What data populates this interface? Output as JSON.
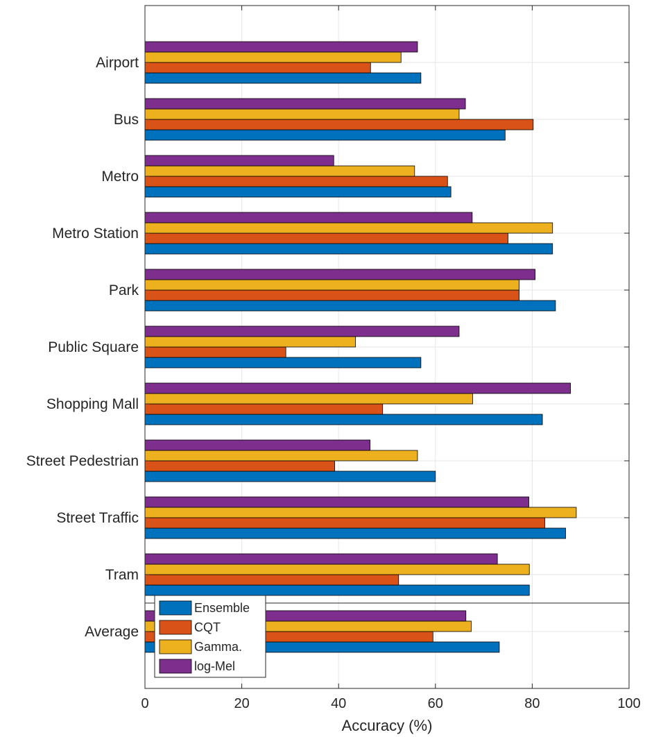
{
  "chart_data": {
    "type": "bar",
    "orientation": "horizontal",
    "categories": [
      "Airport",
      "Bus",
      "Metro",
      "Metro Station",
      "Park",
      "Public Square",
      "Shopping Mall",
      "Street Pedestrian",
      "Street Traffic",
      "Tram",
      "Average"
    ],
    "series": [
      {
        "name": "Ensemble",
        "color": "#0072BD",
        "values": [
          57,
          74.4,
          63.2,
          84.2,
          84.8,
          57,
          82.1,
          60,
          86.9,
          79.4,
          73.2
        ]
      },
      {
        "name": "CQT",
        "color": "#D95319",
        "values": [
          46.6,
          80.2,
          62.5,
          75,
          77.3,
          29.1,
          49.1,
          39.2,
          82.6,
          52.4,
          59.5
        ]
      },
      {
        "name": "Gamma.",
        "color": "#EDB120",
        "values": [
          52.9,
          64.9,
          55.7,
          84.2,
          77.3,
          43.5,
          67.7,
          56.3,
          89.1,
          79.4,
          67.4
        ]
      },
      {
        "name": "log-Mel",
        "color": "#7E2F8E",
        "values": [
          56.3,
          66.2,
          39,
          67.6,
          80.6,
          64.9,
          87.9,
          46.5,
          79.3,
          72.8,
          66.3
        ]
      }
    ],
    "xlabel": "Accuracy (%)",
    "ylabel": "",
    "title": "",
    "xlim": [
      0,
      100
    ],
    "xticks": [
      "0",
      "20",
      "40",
      "60",
      "80",
      "100"
    ],
    "grid": true,
    "legend_position": "bottom-left",
    "separator_before": "Average"
  }
}
